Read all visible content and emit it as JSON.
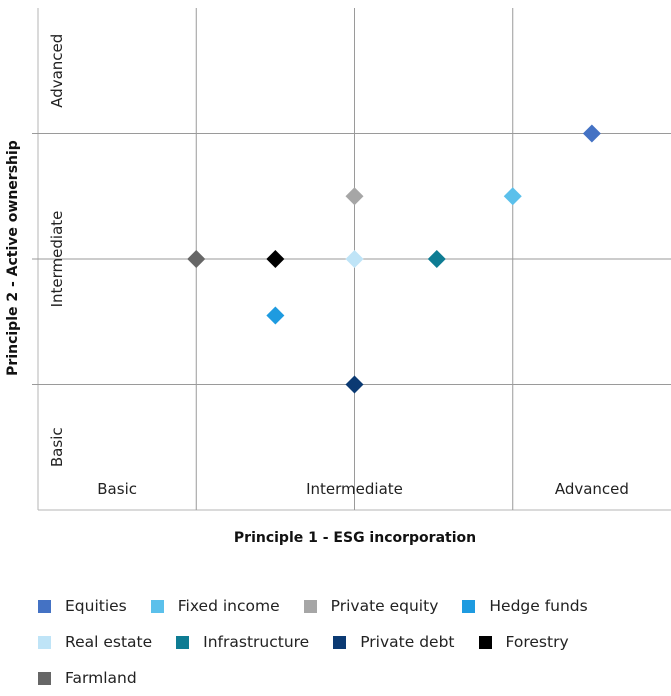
{
  "chart_data": {
    "type": "scatter",
    "x_axis": {
      "title": "Principle 1 - ESG incorporation",
      "range": [
        0,
        4
      ],
      "gridlines": [
        1,
        2,
        3
      ],
      "zone_labels": [
        {
          "label": "Basic",
          "center": 0.5
        },
        {
          "label": "Intermediate",
          "center": 2.0
        },
        {
          "label": "Advanced",
          "center": 3.5
        }
      ]
    },
    "y_axis": {
      "title": "Principle 2 - Active ownership",
      "range": [
        0,
        4
      ],
      "gridlines": [
        1,
        2,
        3
      ],
      "zone_labels": [
        {
          "label": "Basic",
          "center": 0.5
        },
        {
          "label": "Intermediate",
          "center": 2.0
        },
        {
          "label": "Advanced",
          "center": 3.5
        }
      ]
    },
    "grid": true,
    "legend_position": "bottom",
    "series": [
      {
        "name": "Equities",
        "color": "#4472C4",
        "x": 3.5,
        "y": 3.0
      },
      {
        "name": "Fixed income",
        "color": "#5BC0EB",
        "x": 3.0,
        "y": 2.5
      },
      {
        "name": "Private equity",
        "color": "#A6A6A6",
        "x": 2.0,
        "y": 2.5
      },
      {
        "name": "Hedge funds",
        "color": "#1E9BE0",
        "x": 1.5,
        "y": 1.55
      },
      {
        "name": "Real estate",
        "color": "#BFE4F7",
        "x": 2.0,
        "y": 2.0
      },
      {
        "name": "Infrastructure",
        "color": "#0E7C93",
        "x": 2.52,
        "y": 2.0
      },
      {
        "name": "Private debt",
        "color": "#0B3A73",
        "x": 2.0,
        "y": 1.0
      },
      {
        "name": "Forestry",
        "color": "#000000",
        "x": 1.5,
        "y": 2.0
      },
      {
        "name": "Farmland",
        "color": "#666666",
        "x": 1.0,
        "y": 2.0
      }
    ]
  },
  "legend": {
    "rows": [
      [
        "Equities",
        "Fixed income",
        "Private equity",
        "Hedge funds"
      ],
      [
        "Real estate",
        "Infrastructure",
        "Private debt",
        "Forestry"
      ],
      [
        "Farmland"
      ]
    ]
  }
}
